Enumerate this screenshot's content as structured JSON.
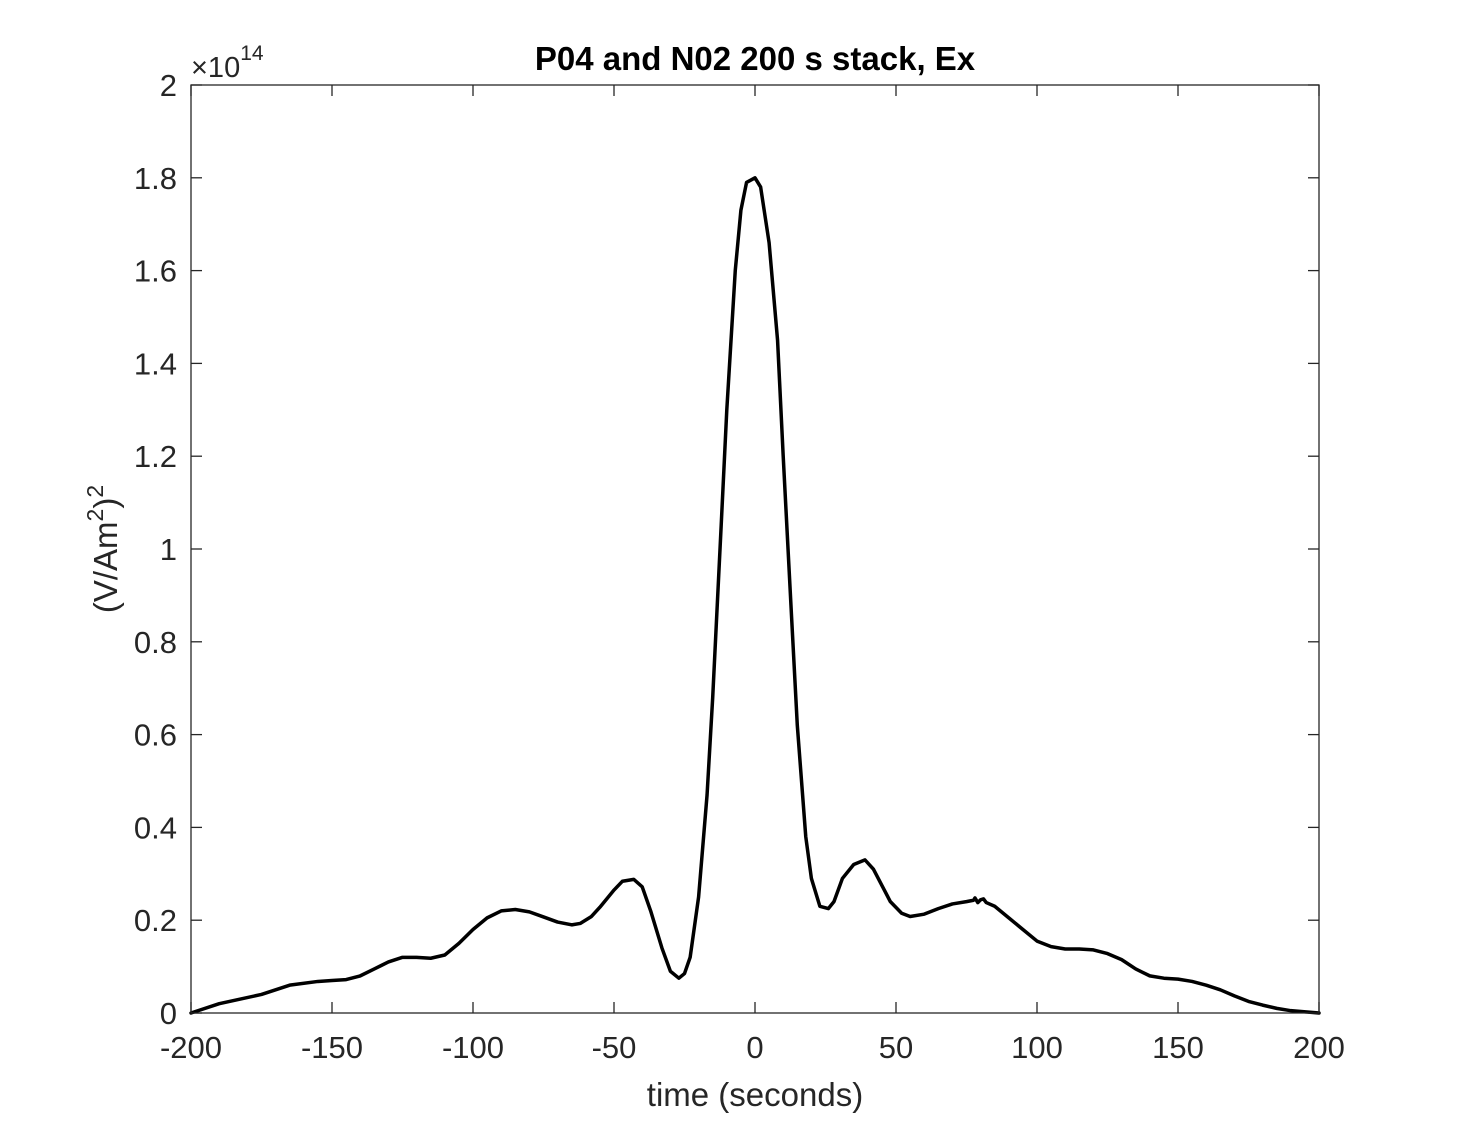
{
  "chart_data": {
    "type": "line",
    "title": "P04 and N02 200 s stack, Ex",
    "xlabel": "time (seconds)",
    "ylabel_main": "(V/Am",
    "ylabel_sup1": "2",
    "ylabel_close": ")",
    "ylabel_sup2": "2",
    "exponent_prefix": "×10",
    "exponent_power": "14",
    "xlim": [
      -200,
      200
    ],
    "ylim": [
      0,
      2
    ],
    "xticks": [
      -200,
      -150,
      -100,
      -50,
      0,
      50,
      100,
      150,
      200
    ],
    "xtick_labels": [
      "-200",
      "-150",
      "-100",
      "-50",
      "0",
      "50",
      "100",
      "150",
      "200"
    ],
    "yticks": [
      0,
      0.2,
      0.4,
      0.6,
      0.8,
      1,
      1.2,
      1.4,
      1.6,
      1.8,
      2
    ],
    "ytick_labels": [
      "0",
      "0.2",
      "0.4",
      "0.6",
      "0.8",
      "1",
      "1.2",
      "1.4",
      "1.6",
      "1.8",
      "2"
    ],
    "grid": false,
    "line_color": "#000000",
    "series": [
      {
        "x": [
          -200,
          -190,
          -175,
          -165,
          -155,
          -150,
          -145,
          -140,
          -135,
          -130,
          -125,
          -120,
          -115,
          -110,
          -105,
          -100,
          -95,
          -90,
          -85,
          -80,
          -75,
          -70,
          -65,
          -62,
          -58,
          -55,
          -50,
          -47,
          -43,
          -40,
          -37,
          -33,
          -30,
          -27,
          -25,
          -23,
          -20,
          -17,
          -15,
          -12,
          -10,
          -7,
          -5,
          -3,
          0,
          2,
          5,
          8,
          10,
          13,
          15,
          18,
          20,
          23,
          26,
          28,
          31,
          35,
          39,
          42,
          45,
          48,
          52,
          55,
          60,
          65,
          70,
          75,
          77.5,
          78,
          79,
          80,
          81,
          82,
          85,
          90,
          95,
          100,
          105,
          110,
          115,
          120,
          125,
          130,
          135,
          140,
          145,
          150,
          155,
          160,
          165,
          170,
          175,
          180,
          185,
          190,
          200
        ],
        "y": [
          0,
          0.02,
          0.04,
          0.06,
          0.068,
          0.07,
          0.072,
          0.08,
          0.095,
          0.11,
          0.12,
          0.12,
          0.118,
          0.125,
          0.15,
          0.18,
          0.205,
          0.22,
          0.223,
          0.218,
          0.207,
          0.196,
          0.19,
          0.193,
          0.208,
          0.228,
          0.265,
          0.284,
          0.288,
          0.272,
          0.22,
          0.14,
          0.09,
          0.075,
          0.085,
          0.12,
          0.25,
          0.47,
          0.68,
          1.05,
          1.3,
          1.6,
          1.73,
          1.79,
          1.8,
          1.78,
          1.66,
          1.45,
          1.2,
          0.85,
          0.62,
          0.38,
          0.29,
          0.23,
          0.225,
          0.24,
          0.29,
          0.32,
          0.33,
          0.31,
          0.275,
          0.24,
          0.215,
          0.208,
          0.213,
          0.225,
          0.235,
          0.24,
          0.243,
          0.248,
          0.238,
          0.244,
          0.246,
          0.238,
          0.23,
          0.205,
          0.18,
          0.155,
          0.143,
          0.138,
          0.138,
          0.136,
          0.128,
          0.115,
          0.095,
          0.08,
          0.075,
          0.073,
          0.068,
          0.06,
          0.05,
          0.037,
          0.025,
          0.017,
          0.01,
          0.005,
          0
        ]
      }
    ]
  }
}
